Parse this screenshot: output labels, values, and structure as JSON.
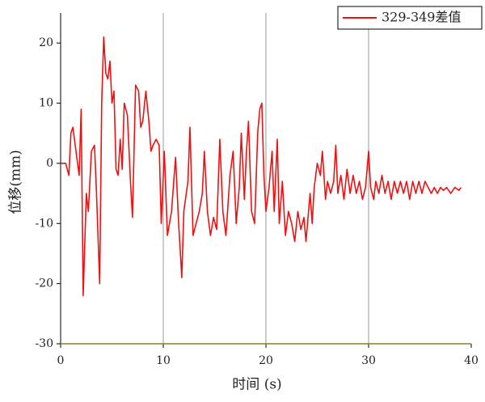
{
  "chart_data": {
    "type": "line",
    "xlabel": "时间 (s)",
    "ylabel": "位移(mm)",
    "x": [
      0,
      0.5,
      0.8,
      1.0,
      1.2,
      1.5,
      1.8,
      2.0,
      2.2,
      2.5,
      2.7,
      3.0,
      3.3,
      3.5,
      3.8,
      4.0,
      4.2,
      4.4,
      4.6,
      4.8,
      5.0,
      5.2,
      5.4,
      5.6,
      5.8,
      6.0,
      6.2,
      6.5,
      6.8,
      7.0,
      7.3,
      7.6,
      7.8,
      8.0,
      8.3,
      8.6,
      8.8,
      9.0,
      9.3,
      9.6,
      9.8,
      10.1,
      10.4,
      10.8,
      11.2,
      11.5,
      11.8,
      12.0,
      12.4,
      12.6,
      12.9,
      13.2,
      13.5,
      13.8,
      14.0,
      14.3,
      14.6,
      14.9,
      15.2,
      15.5,
      15.8,
      16.1,
      16.5,
      16.8,
      17.1,
      17.4,
      17.6,
      17.9,
      18.1,
      18.3,
      18.6,
      18.9,
      19.2,
      19.4,
      19.6,
      19.8,
      20.0,
      20.3,
      20.6,
      20.8,
      21.1,
      21.3,
      21.6,
      21.9,
      22.2,
      22.5,
      22.8,
      23.1,
      23.4,
      23.7,
      23.9,
      24.1,
      24.3,
      24.5,
      24.7,
      25.0,
      25.3,
      25.5,
      25.8,
      26.0,
      26.3,
      26.6,
      26.8,
      27.0,
      27.3,
      27.6,
      27.9,
      28.2,
      28.5,
      28.8,
      29.1,
      29.4,
      29.7,
      30.0,
      30.2,
      30.5,
      30.7,
      31.0,
      31.3,
      31.6,
      31.9,
      32.2,
      32.5,
      32.8,
      33.1,
      33.4,
      33.7,
      34.0,
      34.3,
      34.6,
      34.9,
      35.2,
      35.5,
      35.8,
      36.1,
      36.4,
      36.7,
      37.0,
      37.3,
      37.6,
      38.0,
      38.4,
      38.8,
      39.0
    ],
    "series": [
      {
        "name": "329-349差值",
        "color": "#ee1111",
        "values": [
          0,
          0,
          -2,
          5,
          6,
          2,
          -2,
          9,
          -22,
          -5,
          -8,
          2,
          3,
          -5,
          -20,
          10,
          21,
          15,
          14,
          17,
          10,
          12,
          -1,
          -2,
          4,
          -1,
          10,
          8,
          -3,
          -9,
          13,
          12,
          6,
          7,
          12,
          7,
          2,
          3,
          4,
          3,
          -10,
          2,
          -12,
          -8,
          1,
          -10,
          -19,
          -8,
          -3,
          6,
          -12,
          -10,
          -8,
          -5,
          2,
          -8,
          -12,
          -9,
          -11,
          4,
          -8,
          -12,
          -2,
          2,
          -10,
          -4,
          5,
          -6,
          2,
          7,
          -8,
          -10,
          5,
          9,
          10,
          -2,
          -8,
          -4,
          2,
          -8,
          4,
          -10,
          -3,
          -12,
          -8,
          -10,
          -13,
          -8,
          -11,
          -9,
          -13,
          -9,
          -5,
          -10,
          -4,
          0,
          -2,
          2,
          -6,
          -3,
          -5,
          -3,
          3,
          -5,
          -2,
          -6,
          -1,
          -5,
          -2,
          -5,
          -3,
          -6,
          -4,
          2,
          -4,
          -6,
          -3,
          -5,
          -2,
          -5,
          -3,
          -6,
          -3,
          -5,
          -3,
          -5,
          -3,
          -6,
          -3,
          -5,
          -3,
          -5,
          -3,
          -4,
          -5,
          -4,
          -5,
          -4,
          -4.5,
          -4,
          -5,
          -4,
          -4.5,
          -4
        ]
      }
    ],
    "xlim": [
      0,
      40
    ],
    "xticks": [
      0,
      10,
      20,
      30,
      40
    ],
    "ylim": [
      -30,
      25
    ],
    "yticks": [
      -30,
      -20,
      -10,
      0,
      10,
      20
    ],
    "grid": true,
    "legend": "upper right"
  }
}
